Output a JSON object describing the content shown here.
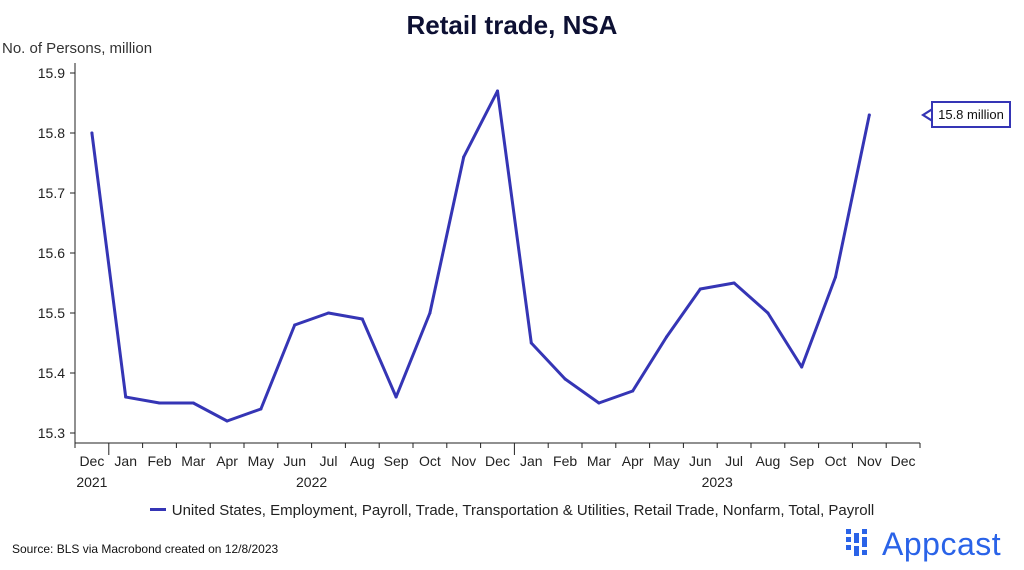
{
  "chart_data": {
    "type": "line",
    "title": "Retail trade, NSA",
    "ylabel": "No. of Persons, million",
    "xlabel": "",
    "ylim": [
      15.3,
      15.9
    ],
    "y_ticks": [
      "15.3",
      "15.4",
      "15.5",
      "15.6",
      "15.7",
      "15.8",
      "15.9"
    ],
    "x_categories": [
      "Dec",
      "Jan",
      "Feb",
      "Mar",
      "Apr",
      "May",
      "Jun",
      "Jul",
      "Aug",
      "Sep",
      "Oct",
      "Nov",
      "Dec",
      "Jan",
      "Feb",
      "Mar",
      "Apr",
      "May",
      "Jun",
      "Jul",
      "Aug",
      "Sep",
      "Oct",
      "Nov",
      "Dec"
    ],
    "year_labels": [
      {
        "label": "2021",
        "index": 0
      },
      {
        "label": "2022",
        "index": 6.5
      },
      {
        "label": "2023",
        "index": 18.5
      }
    ],
    "series": [
      {
        "name": "United States, Employment, Payroll, Trade, Transportation & Utilities, Retail Trade, Nonfarm, Total, Payroll",
        "color": "#3535b5",
        "values": [
          15.8,
          15.36,
          15.35,
          15.35,
          15.32,
          15.34,
          15.48,
          15.5,
          15.49,
          15.36,
          15.5,
          15.76,
          15.87,
          15.45,
          15.39,
          15.35,
          15.37,
          15.46,
          15.54,
          15.55,
          15.5,
          15.41,
          15.56,
          15.83,
          null
        ]
      }
    ],
    "legend_position": "bottom",
    "grid": false,
    "annotations": [
      {
        "text": "15.8 million"
      }
    ]
  },
  "footer": {
    "source": "Source: BLS via Macrobond created on 12/8/2023",
    "logo_text": "Appcast"
  }
}
